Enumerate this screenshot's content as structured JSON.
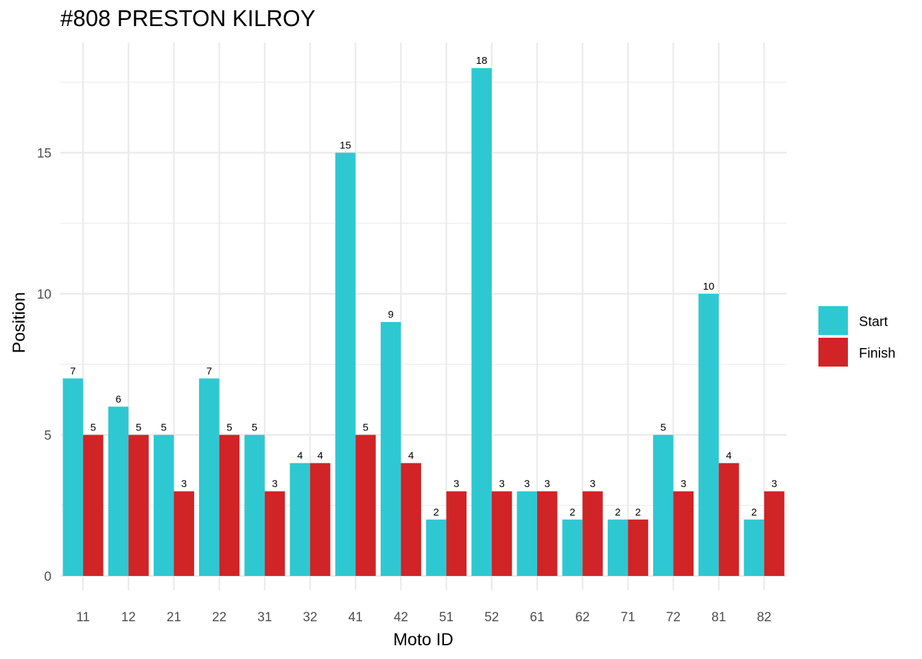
{
  "chart_data": {
    "type": "bar",
    "title": "#808 PRESTON KILROY",
    "xlabel": "Moto ID",
    "ylabel": "Position",
    "categories": [
      "11",
      "12",
      "21",
      "22",
      "31",
      "32",
      "41",
      "42",
      "51",
      "52",
      "61",
      "62",
      "71",
      "72",
      "81",
      "82"
    ],
    "series": [
      {
        "name": "Start",
        "color": "#2ec8d2",
        "values": [
          7,
          6,
          5,
          7,
          5,
          4,
          15,
          9,
          2,
          18,
          3,
          2,
          2,
          5,
          10,
          2
        ]
      },
      {
        "name": "Finish",
        "color": "#d12426",
        "values": [
          5,
          5,
          3,
          5,
          3,
          4,
          5,
          4,
          3,
          3,
          3,
          3,
          2,
          3,
          4,
          3
        ]
      }
    ],
    "ylim": [
      0,
      19
    ],
    "yticks": [
      0,
      5,
      10,
      15
    ],
    "grid": true,
    "legend_position": "right",
    "data_labels": true
  }
}
